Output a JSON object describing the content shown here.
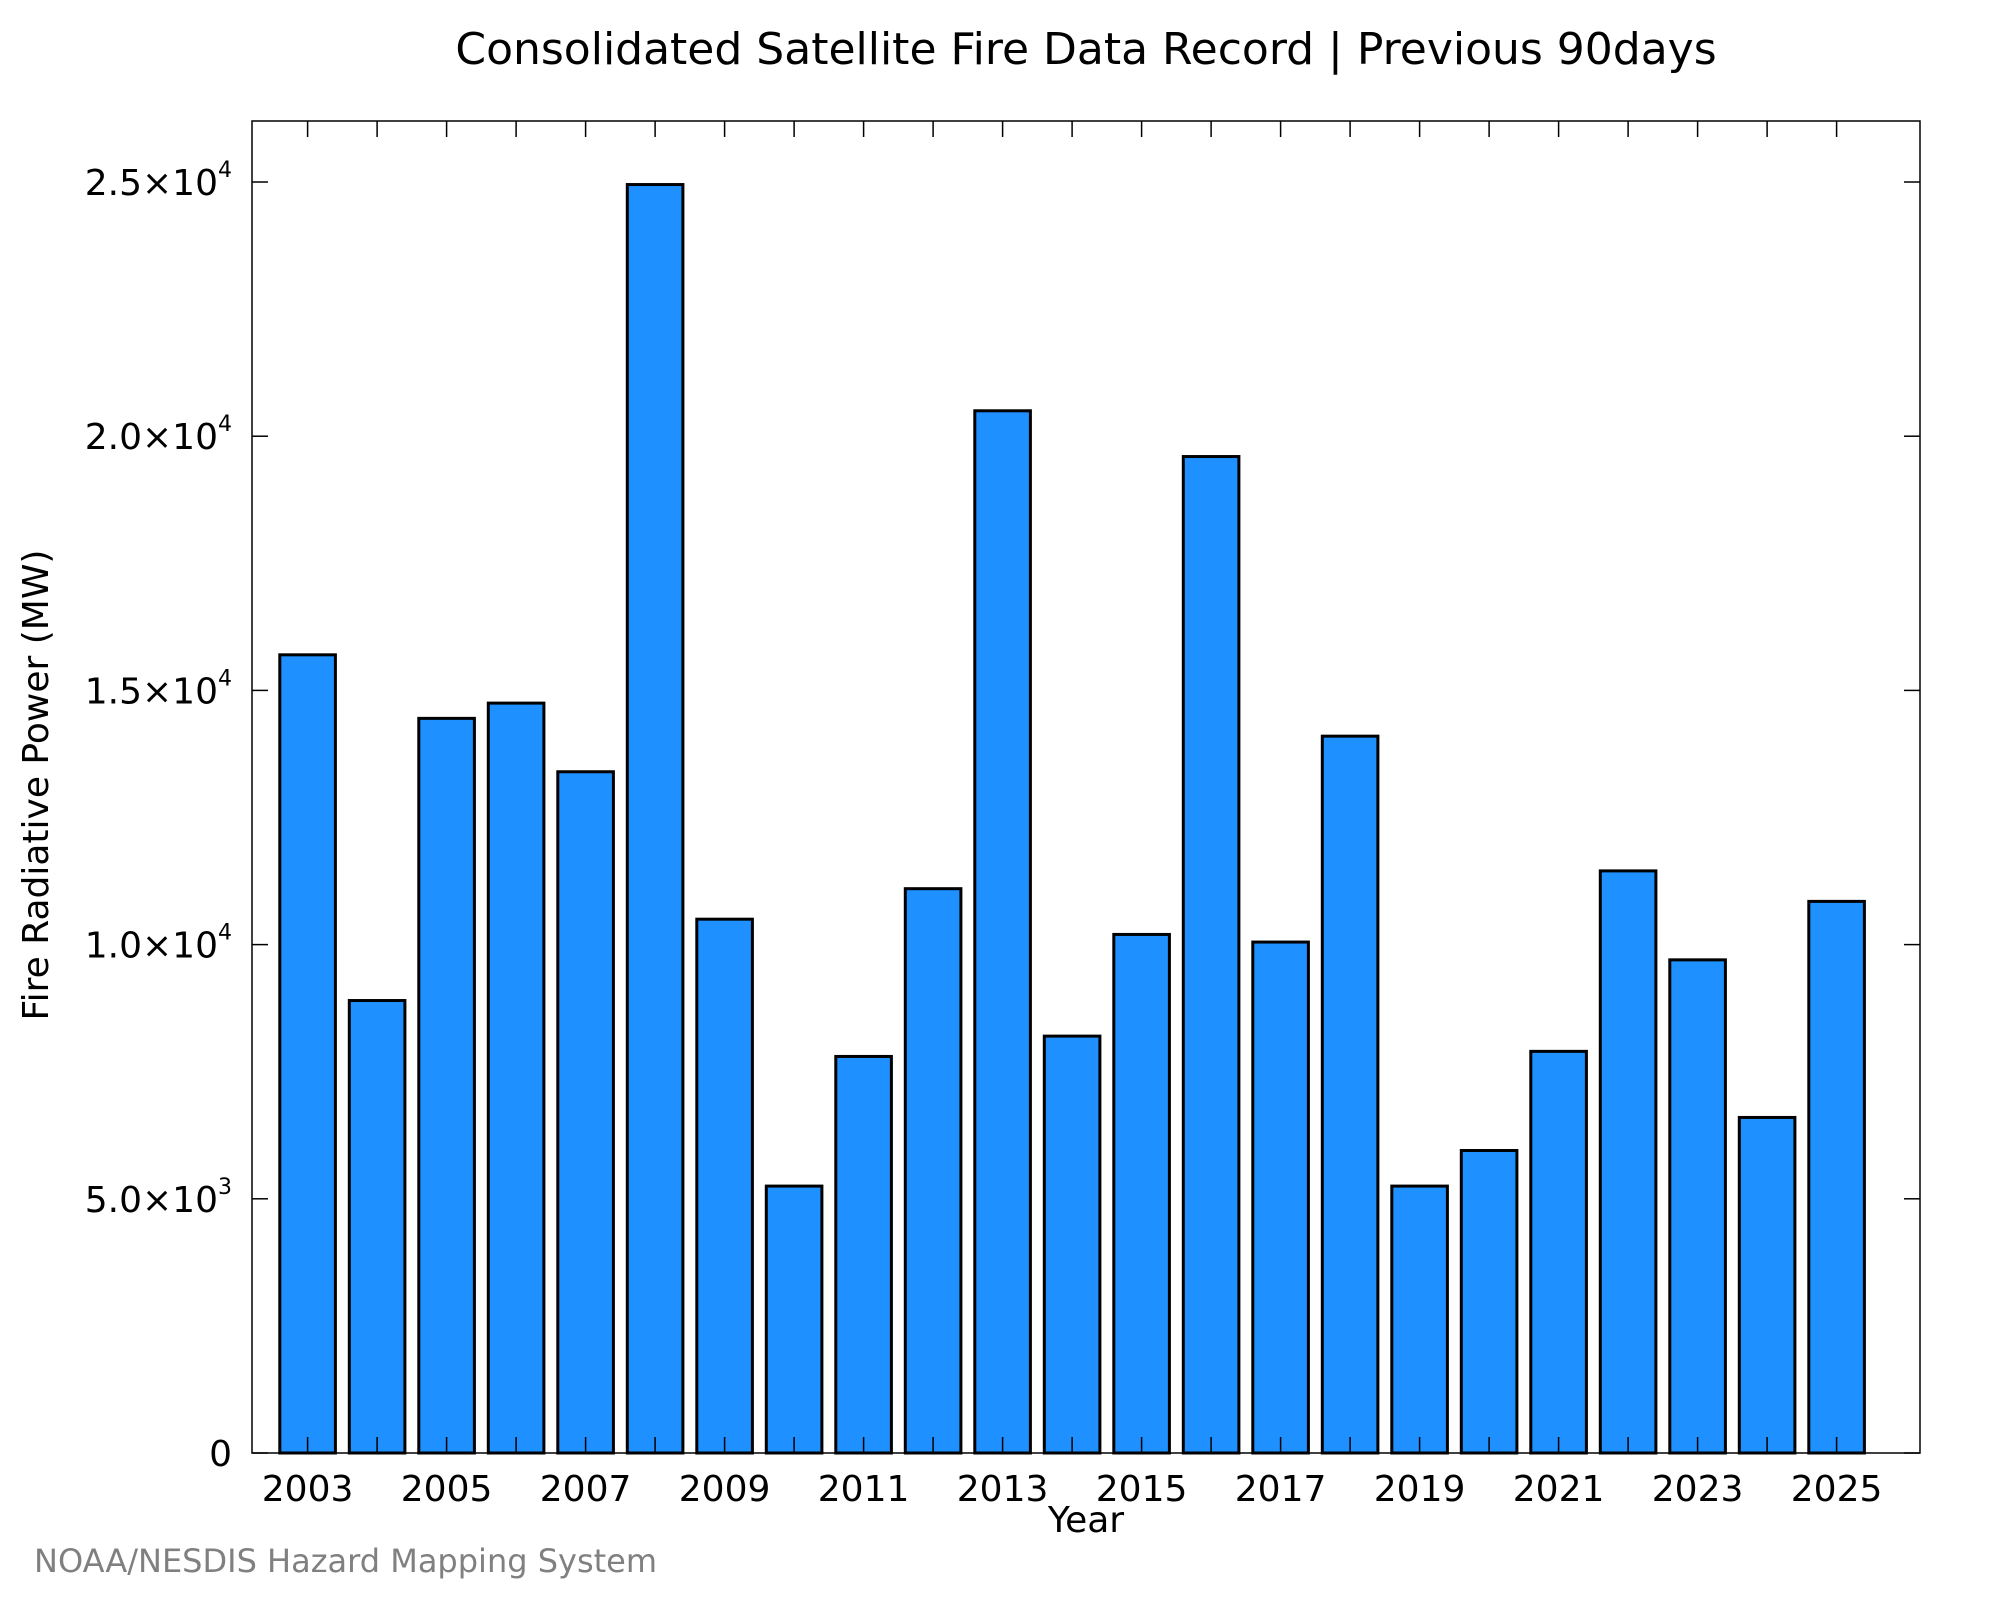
{
  "colors": {
    "bar_fill": "#1e90ff",
    "bar_edge": "#000000",
    "credit_text": "#808080"
  },
  "credit": "NOAA/NESDIS Hazard Mapping System",
  "chart_data": {
    "type": "bar",
    "title": "Consolidated Satellite Fire Data Record | Previous 90days",
    "xlabel": "Year",
    "ylabel": "Fire Radiative Power (MW)",
    "ylim": [
      0,
      26200
    ],
    "xlim": [
      2002.2,
      2026.2
    ],
    "grid": false,
    "legend": "none",
    "categories": [
      2003,
      2004,
      2005,
      2006,
      2007,
      2008,
      2009,
      2010,
      2011,
      2012,
      2013,
      2014,
      2015,
      2016,
      2017,
      2018,
      2019,
      2020,
      2021,
      2022,
      2023,
      2024,
      2025
    ],
    "values": [
      15700,
      8900,
      14450,
      14750,
      13400,
      24950,
      10500,
      5250,
      7800,
      11100,
      20500,
      8200,
      10200,
      19600,
      10050,
      14100,
      5250,
      5950,
      7900,
      11450,
      9700,
      6600,
      10850
    ],
    "x_ticks": [
      2003,
      2005,
      2007,
      2009,
      2011,
      2013,
      2015,
      2017,
      2019,
      2021,
      2023,
      2025
    ],
    "x_tick_labels": [
      "2003",
      "2005",
      "2007",
      "2009",
      "2011",
      "2013",
      "2015",
      "2017",
      "2019",
      "2021",
      "2023",
      "2025"
    ],
    "y_ticks": [
      {
        "value": 0,
        "mantissa": "0",
        "exponent": ""
      },
      {
        "value": 5000,
        "mantissa": "5.0×10",
        "exponent": "3"
      },
      {
        "value": 10000,
        "mantissa": "1.0×10",
        "exponent": "4"
      },
      {
        "value": 15000,
        "mantissa": "1.5×10",
        "exponent": "4"
      },
      {
        "value": 20000,
        "mantissa": "2.0×10",
        "exponent": "4"
      },
      {
        "value": 25000,
        "mantissa": "2.5×10",
        "exponent": "4"
      }
    ]
  }
}
